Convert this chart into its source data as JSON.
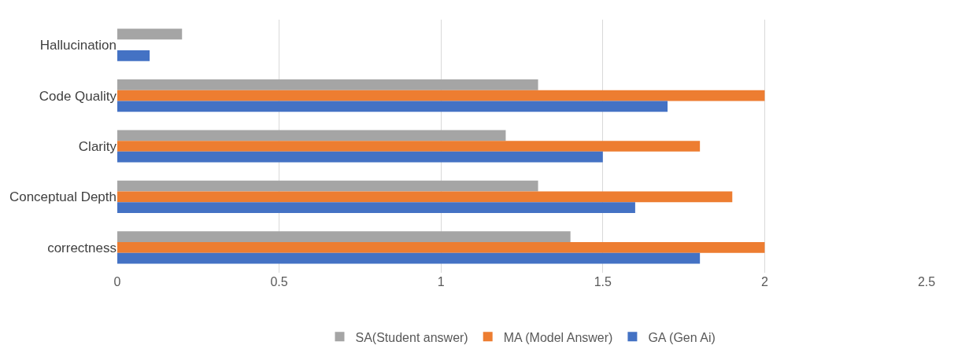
{
  "chart_data": {
    "type": "bar",
    "orientation": "horizontal",
    "categories": [
      "Hallucination",
      "Code Quality",
      "Clarity",
      "Conceptual Depth",
      "correctness"
    ],
    "series": [
      {
        "name": "SA(Student answer)",
        "color": "#a5a5a5",
        "values": [
          0.2,
          1.3,
          1.2,
          1.3,
          1.4
        ]
      },
      {
        "name": "MA (Model Answer)",
        "color": "#ed7d31",
        "values": [
          null,
          2,
          1.8,
          1.9,
          2
        ]
      },
      {
        "name": "GA (Gen Ai)",
        "color": "#4472c4",
        "values": [
          0.1,
          1.7,
          1.5,
          1.6,
          1.8
        ]
      }
    ],
    "xlim": [
      0,
      2.5
    ],
    "xticks": [
      0,
      0.5,
      1,
      1.5,
      2,
      2.5
    ],
    "grid": "x",
    "legend": "bottom"
  }
}
